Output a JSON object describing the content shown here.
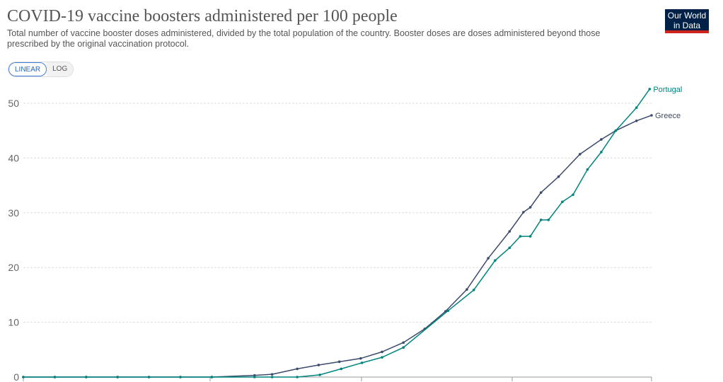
{
  "header": {
    "title": "COVID-19 vaccine boosters administered per 100 people",
    "subtitle": "Total number of vaccine booster doses administered, divided by the total population of the country. Booster doses are doses administered beyond those prescribed by the original vaccination protocol.",
    "logo": "Our World in Data",
    "linear": "LINEAR",
    "log": "LOG"
  },
  "chart_data": {
    "type": "line",
    "title": "COVID-19 vaccine boosters administered per 100 people",
    "xlabel": "",
    "ylabel": "",
    "xlim": [
      0,
      100
    ],
    "ylim": [
      0,
      50
    ],
    "yticks": [
      "0",
      "10",
      "20",
      "30",
      "40",
      "50"
    ],
    "grid": true,
    "legend": "right-end labels",
    "series": [
      {
        "name": "Greece",
        "color": "#3c4b6b",
        "x": [
          0,
          5,
          10,
          15,
          20,
          25,
          30,
          36.8,
          39.6,
          43.6,
          47,
          50.3,
          53.7,
          57.1,
          60.5,
          63.9,
          67.2,
          70.6,
          74,
          77.4,
          79.6,
          80.7,
          82.4,
          85.2,
          88.6,
          92,
          94.3,
          97.6,
          100
        ],
        "y": [
          0,
          0,
          0,
          0,
          0,
          0,
          0,
          0.3,
          0.5,
          1.5,
          2.2,
          2.8,
          3.4,
          4.6,
          6.3,
          8.8,
          12,
          16,
          21.7,
          26.6,
          30.1,
          31,
          33.7,
          36.6,
          40.7,
          43.4,
          45,
          46.8,
          47.8
        ]
      },
      {
        "name": "Portugal",
        "color": "#00847e",
        "x": [
          0,
          5,
          10,
          15,
          20,
          25,
          30,
          36.8,
          39.6,
          43.6,
          47.2,
          50.6,
          53.9,
          57.1,
          60.5,
          67.6,
          71.7,
          75.1,
          77.4,
          79.1,
          80.7,
          82.4,
          83.6,
          85.8,
          87.5,
          89.8,
          92,
          94.3,
          97.6,
          99.7
        ],
        "y": [
          0,
          0,
          0,
          0,
          0,
          0,
          0,
          0,
          0,
          0,
          0.4,
          1.5,
          2.6,
          3.6,
          5.4,
          12.1,
          15.9,
          21.3,
          23.6,
          25.7,
          25.7,
          28.7,
          28.7,
          32,
          33.3,
          37.9,
          41.1,
          45,
          49.2,
          52.6
        ]
      }
    ]
  }
}
